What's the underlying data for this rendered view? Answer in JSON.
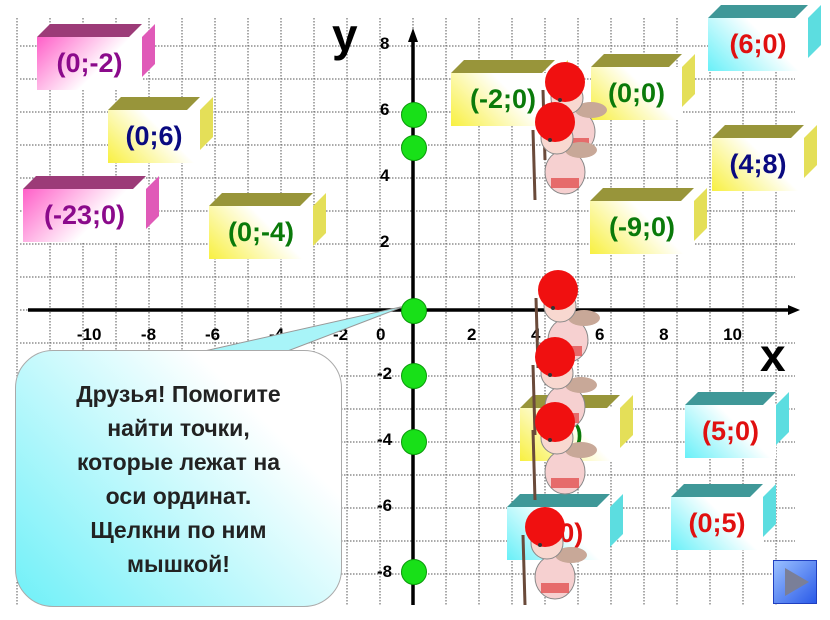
{
  "axes": {
    "x_name": "x",
    "y_name": "y",
    "x_ticks": [
      "-10",
      "-8",
      "-6",
      "-4",
      "-2",
      "0",
      "2",
      "4",
      "6",
      "8",
      "10"
    ],
    "y_ticks": [
      "8",
      "6",
      "4",
      "2",
      "-2",
      "-4",
      "-6",
      "-8"
    ]
  },
  "points_on_y_axis": [
    6,
    5,
    0,
    -2,
    -4,
    -8
  ],
  "boxes": [
    {
      "label": "(0;-2)",
      "style": "pink",
      "text_color": "#8b0a8b"
    },
    {
      "label": "(0;6)",
      "style": "yellow",
      "text_color": "#0a0a80"
    },
    {
      "label": "(-23;0)",
      "style": "pink",
      "text_color": "#8b0a8b"
    },
    {
      "label": "(0;-4)",
      "style": "yellow",
      "text_color": "#0a7a0a"
    },
    {
      "label": "(-2;0)",
      "style": "yellow",
      "text_color": "#0a7a0a"
    },
    {
      "label": "(0;0)",
      "style": "yellow",
      "text_color": "#0a7a0a"
    },
    {
      "label": "(6;0)",
      "style": "cyan",
      "text_color": "#e01010"
    },
    {
      "label": "(4;8)",
      "style": "yellow",
      "text_color": "#0a0a80"
    },
    {
      "label": "(-9;0)",
      "style": "yellow",
      "text_color": "#0a7a0a"
    },
    {
      "label": "(        )",
      "style": "yellow",
      "text_color": "#0a7a0a"
    },
    {
      "label": "(5;0)",
      "style": "cyan",
      "text_color": "#e01010"
    },
    {
      "label": "(-      0)",
      "style": "cyan",
      "text_color": "#e01010"
    },
    {
      "label": "(0;5)",
      "style": "cyan",
      "text_color": "#e01010"
    }
  ],
  "bubble": {
    "text": "Друзья! Помогите\nнайти точки,\nкоторые лежат на\nоси ординат.\nЩелкни по ним\nмышкой!"
  },
  "next_button": {
    "icon": "play-triangle-icon"
  },
  "colors": {
    "dot": "#18e018",
    "axis": "#000000",
    "grid": "#555555"
  }
}
